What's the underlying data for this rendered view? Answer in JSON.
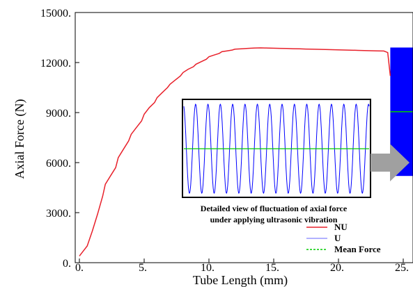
{
  "chart_data": {
    "type": "line",
    "xlabel": "Tube Length (mm)",
    "ylabel": "Axial Force (N)",
    "xlim": [
      0,
      26
    ],
    "ylim": [
      0,
      15000
    ],
    "x_ticks": [
      "0.",
      "5.",
      "10.",
      "15.",
      "20.",
      "25."
    ],
    "y_ticks": [
      "0.",
      "3000.",
      "6000.",
      "9000.",
      "12000.",
      "15000."
    ],
    "grid": false,
    "legend_position": "bottom-right",
    "series": [
      {
        "name": "NU",
        "color": "#e8202a",
        "x": [
          0,
          0.3,
          0.6,
          1.0,
          1.4,
          1.8,
          2.0,
          2.4,
          2.8,
          3.0,
          3.4,
          3.8,
          4.0,
          4.4,
          4.8,
          5.0,
          5.4,
          5.8,
          6.0,
          6.4,
          6.8,
          7.0,
          7.4,
          7.8,
          8.0,
          8.4,
          8.8,
          9.0,
          9.4,
          9.8,
          10.0,
          10.4,
          10.8,
          11.0,
          11.4,
          11.8,
          12.0,
          12.5,
          13.0,
          13.5,
          14.0,
          14.5,
          15.0,
          15.5,
          16.0,
          16.5,
          17.0,
          17.5,
          18.0,
          18.5,
          19.0,
          19.5,
          20.0,
          20.5,
          21.0,
          21.5,
          22.0,
          22.5,
          23.0,
          23.5,
          23.8,
          24.0
        ],
        "y": [
          400,
          700,
          1000,
          1900,
          2900,
          4000,
          4700,
          5200,
          5700,
          6300,
          6800,
          7300,
          7700,
          8100,
          8500,
          8900,
          9300,
          9600,
          9900,
          10200,
          10500,
          10700,
          10950,
          11200,
          11400,
          11600,
          11750,
          11900,
          12050,
          12200,
          12350,
          12450,
          12550,
          12650,
          12700,
          12750,
          12800,
          12820,
          12850,
          12870,
          12880,
          12870,
          12860,
          12850,
          12840,
          12830,
          12820,
          12810,
          12800,
          12790,
          12780,
          12770,
          12760,
          12750,
          12740,
          12730,
          12720,
          12710,
          12700,
          12690,
          12600,
          11200
        ]
      },
      {
        "name": "U",
        "color": "#0000ff"
      },
      {
        "name": "Mean Force",
        "color": "#00cc00",
        "value": 9050
      }
    ],
    "u_band": {
      "x_start": 24.0,
      "x_end": 26,
      "y_low": 5200,
      "y_high": 12900
    },
    "inset": {
      "cycles": 15,
      "line_color": "#0000ff",
      "mean_color": "#00cc00"
    },
    "annotation": {
      "line1": "Detailed view of fluctuation of axial force",
      "line2": "under applying ultrasonic vibration"
    }
  }
}
